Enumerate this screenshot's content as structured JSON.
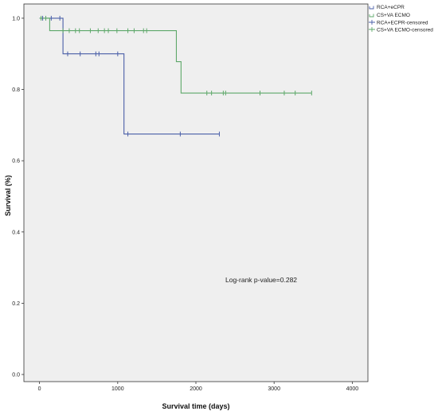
{
  "chart_data": {
    "type": "line",
    "step": true,
    "xlabel": "Survival time (days)",
    "ylabel": "Survival (%)",
    "xlim": [
      -200,
      4200
    ],
    "ylim": [
      -0.02,
      1.04
    ],
    "x_ticks": [
      0,
      1000,
      2000,
      3000,
      4000
    ],
    "x_tick_labels": [
      "0",
      "1000",
      "2000",
      "3000",
      "4000"
    ],
    "y_ticks": [
      0.0,
      0.2,
      0.4,
      0.6,
      0.8,
      1.0
    ],
    "y_tick_labels": [
      "0.0",
      "0.2",
      "0.4",
      "0.6",
      "0.8",
      "1.0"
    ],
    "grid": false,
    "plot_background": "#efefef",
    "legend_position": "outside-top-right",
    "legend": [
      "RCA+eCPR",
      "CS+VA ECMO",
      "RCA+ECPR-censored",
      "CS+VA ECMO-censored"
    ],
    "annotation": "Log-rank p-value=0.282",
    "series": [
      {
        "name": "RCA+eCPR",
        "color": "#4a5fa8",
        "steps": [
          [
            0,
            1.0
          ],
          [
            300,
            0.9
          ],
          [
            1080,
            0.675
          ],
          [
            2300,
            0.675
          ]
        ],
        "censored": [
          [
            40,
            1.0
          ],
          [
            150,
            1.0
          ],
          [
            260,
            1.0
          ],
          [
            360,
            0.9
          ],
          [
            520,
            0.9
          ],
          [
            720,
            0.9
          ],
          [
            760,
            0.9
          ],
          [
            1000,
            0.9
          ],
          [
            1130,
            0.675
          ],
          [
            1800,
            0.675
          ],
          [
            2300,
            0.675
          ]
        ]
      },
      {
        "name": "CS+VA ECMO",
        "color": "#5ea86a",
        "steps": [
          [
            0,
            1.0
          ],
          [
            130,
            0.965
          ],
          [
            1750,
            0.878
          ],
          [
            1810,
            0.79
          ],
          [
            3480,
            0.79
          ]
        ],
        "censored": [
          [
            20,
            1.0
          ],
          [
            80,
            1.0
          ],
          [
            300,
            0.965
          ],
          [
            380,
            0.965
          ],
          [
            460,
            0.965
          ],
          [
            510,
            0.965
          ],
          [
            650,
            0.965
          ],
          [
            750,
            0.965
          ],
          [
            830,
            0.965
          ],
          [
            880,
            0.965
          ],
          [
            990,
            0.965
          ],
          [
            1130,
            0.965
          ],
          [
            1210,
            0.965
          ],
          [
            1330,
            0.965
          ],
          [
            1370,
            0.965
          ],
          [
            2140,
            0.79
          ],
          [
            2200,
            0.79
          ],
          [
            2350,
            0.79
          ],
          [
            2380,
            0.79
          ],
          [
            2820,
            0.79
          ],
          [
            3130,
            0.79
          ],
          [
            3270,
            0.79
          ],
          [
            3480,
            0.79
          ]
        ]
      }
    ]
  }
}
